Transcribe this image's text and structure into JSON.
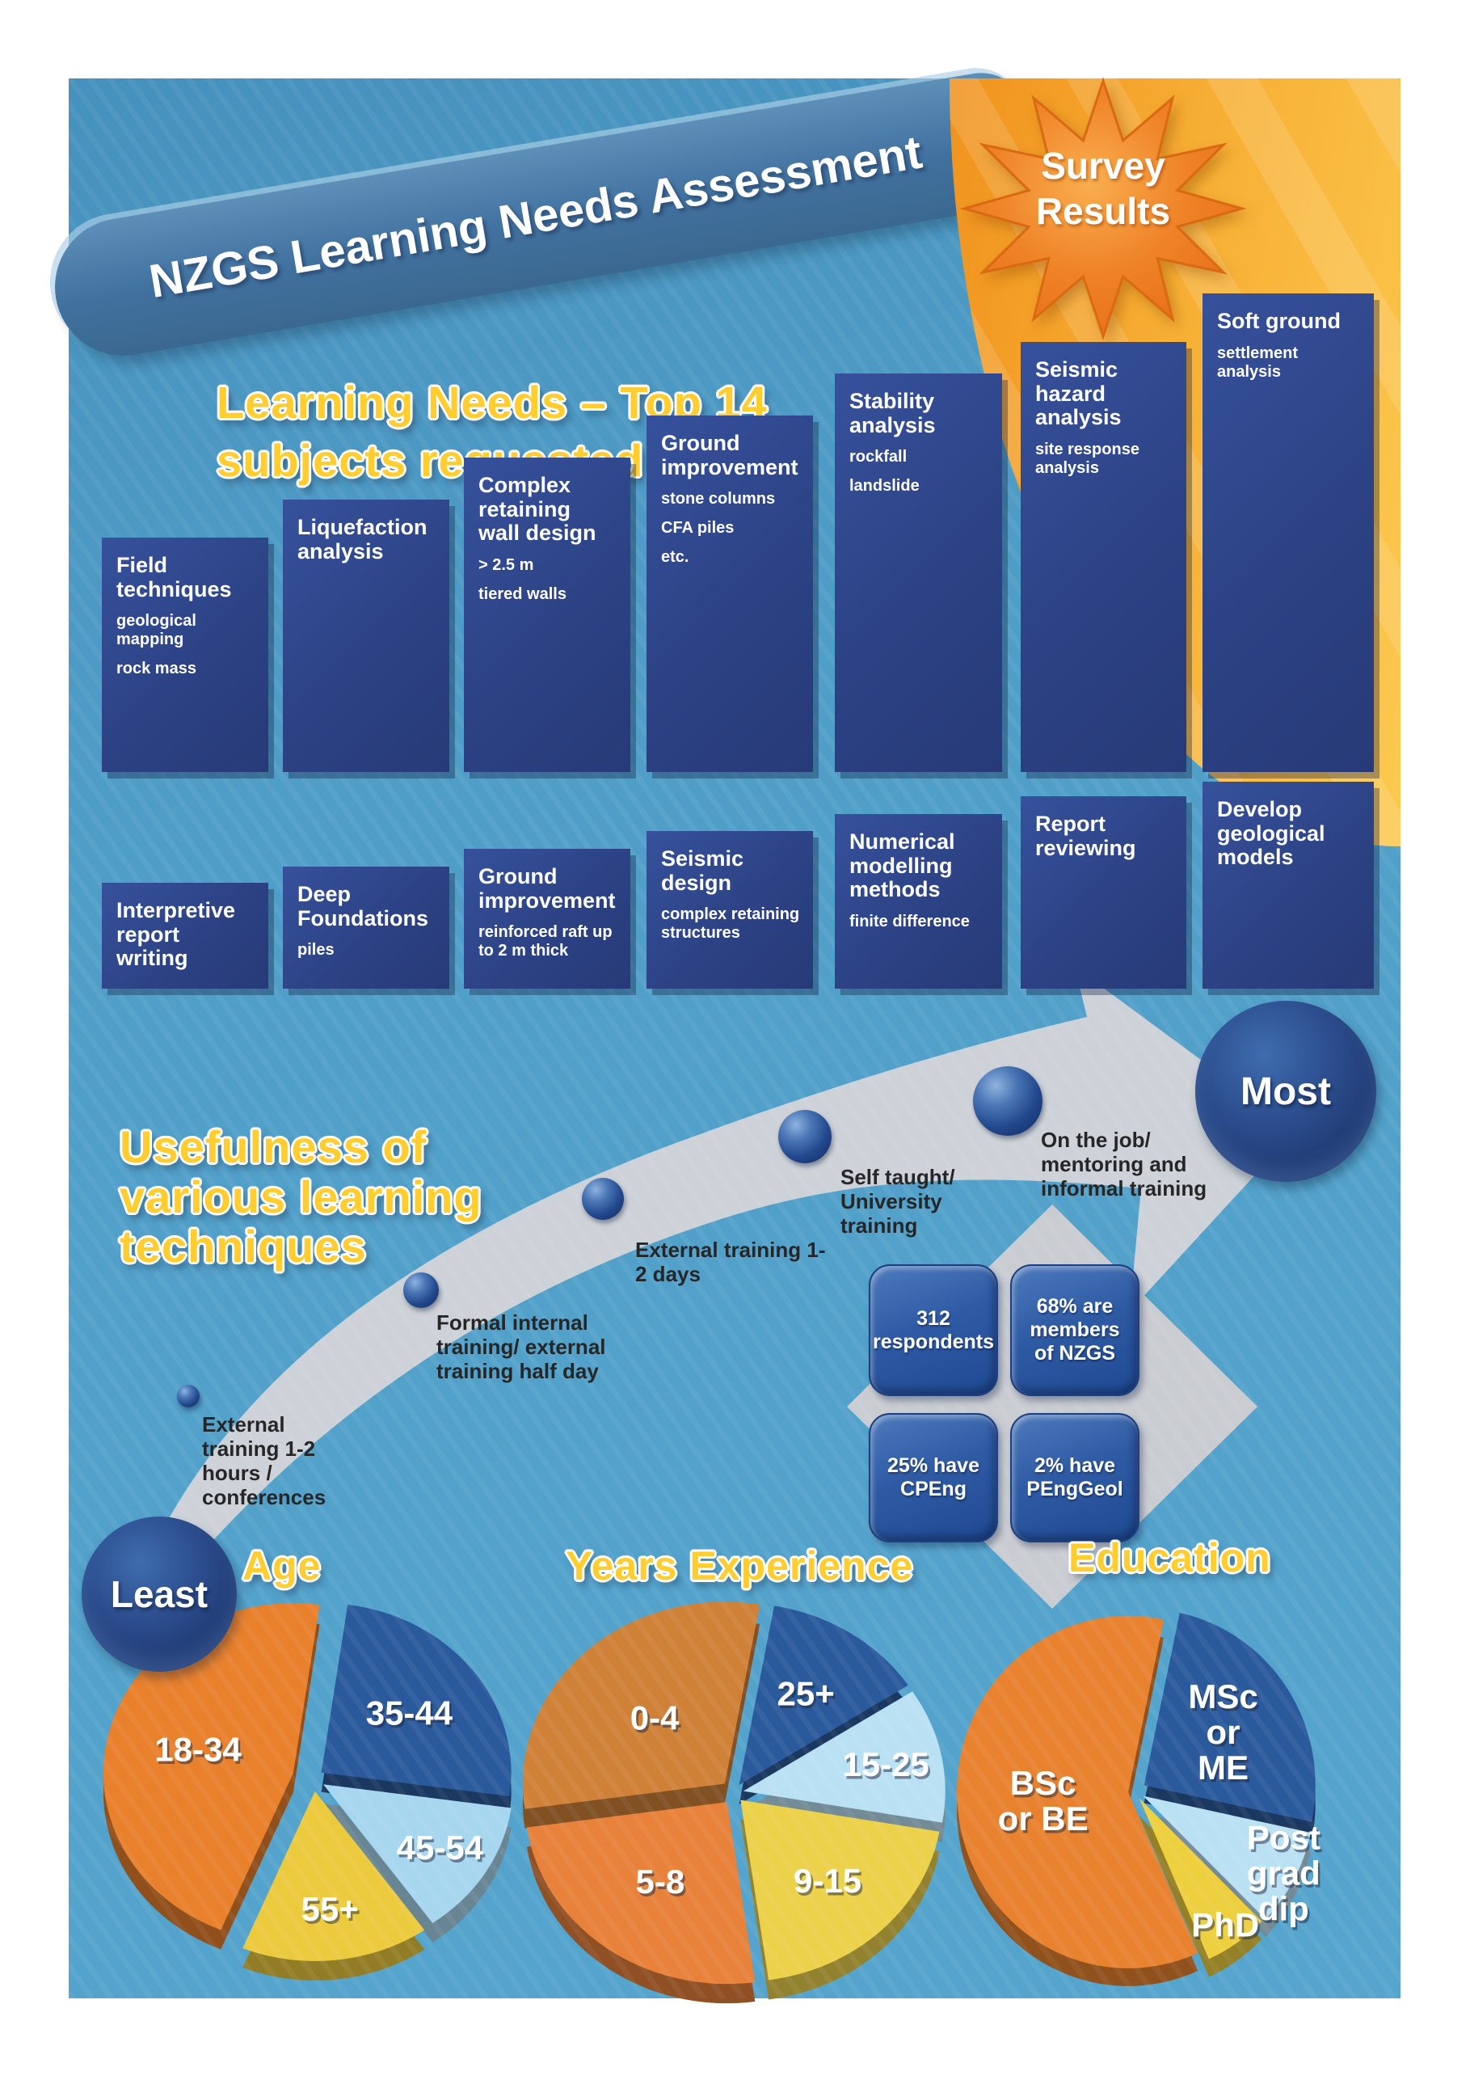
{
  "header": {
    "title": "NZGS Learning Needs Assessment",
    "badge_line1": "Survey",
    "badge_line2": "Results"
  },
  "learning_needs": {
    "heading_line1": "Learning Needs – Top 14",
    "heading_line2": "subjects requested",
    "row1": [
      {
        "title": "Field techniques",
        "details": [
          "geological mapping",
          "rock mass"
        ]
      },
      {
        "title": "Liquefaction analysis",
        "details": []
      },
      {
        "title": "Complex retaining wall design",
        "details": [
          "> 2.5 m",
          "tiered walls"
        ]
      },
      {
        "title": "Ground improvement",
        "details": [
          "stone columns",
          "CFA piles",
          "etc."
        ]
      },
      {
        "title": "Stability analysis",
        "details": [
          "rockfall",
          "landslide"
        ]
      },
      {
        "title": "Seismic hazard analysis",
        "details": [
          "site response analysis"
        ]
      },
      {
        "title": "Soft ground",
        "details": [
          "settlement analysis"
        ]
      }
    ],
    "row2": [
      {
        "title": "Interpretive report writing",
        "details": []
      },
      {
        "title": "Deep Foundations",
        "details": [
          "piles"
        ]
      },
      {
        "title": "Ground improvement",
        "details": [
          "reinforced raft up to 2 m thick"
        ]
      },
      {
        "title": "Seismic design",
        "details": [
          "complex retaining structures"
        ]
      },
      {
        "title": "Numerical modelling methods",
        "details": [
          "finite difference"
        ]
      },
      {
        "title": "Report reviewing",
        "details": []
      },
      {
        "title": "Develop geological models",
        "details": []
      }
    ]
  },
  "usefulness": {
    "heading_line1": "Usefulness of",
    "heading_line2": "various learning",
    "heading_line3": "techniques",
    "least_label": "Least",
    "most_label": "Most",
    "points": [
      {
        "label": "External training 1-2 hours / conferences"
      },
      {
        "label": "Formal internal training/ external training half day"
      },
      {
        "label": "External training 1-2 days"
      },
      {
        "label": "Self taught/ University training"
      },
      {
        "label": "On the job/ mentoring and informal training"
      }
    ]
  },
  "stats": {
    "tiles": [
      {
        "text": "312 respondents"
      },
      {
        "text": "68% are members of NZGS"
      },
      {
        "text": "25% have CPEng"
      },
      {
        "text": "2% have PEngGeol"
      }
    ]
  },
  "chart_data": [
    {
      "type": "bar",
      "title": "Learning Needs – Top 14 subjects requested",
      "note": "stepped boxes, no numeric axis shown; values are relative box heights (%)",
      "categories": [
        "Field techniques",
        "Liquefaction analysis",
        "Complex retaining wall design",
        "Ground improvement",
        "Stability analysis",
        "Seismic hazard analysis",
        "Soft ground",
        "Interpretive report writing",
        "Deep Foundations",
        "Ground improvement (rafts)",
        "Seismic design",
        "Numerical modelling methods",
        "Report reviewing",
        "Develop geological models"
      ],
      "values": [
        49,
        57,
        66,
        75,
        83,
        90,
        100,
        22,
        26,
        29,
        33,
        36,
        40,
        43
      ],
      "xlabel": "",
      "ylabel": ""
    },
    {
      "type": "pie",
      "title": "Age",
      "labels": [
        "35-44",
        "45-54",
        "55+",
        "18-34"
      ],
      "values": [
        25,
        13,
        16,
        46
      ],
      "colors": [
        "#2b5a9c",
        "#a7d6ef",
        "#ecca3e",
        "#e8802c"
      ],
      "start_angle": 8,
      "legend": "labels inside slices, 3D exploded pie"
    },
    {
      "type": "pie",
      "title": "Years Experience",
      "labels": [
        "25+",
        "15-25",
        "9-15",
        "5-8",
        "0-4"
      ],
      "values": [
        13,
        12,
        20,
        25,
        30
      ],
      "colors": [
        "#2b5a9c",
        "#b9e0f3",
        "#ecd14b",
        "#e8813a",
        "#d08138"
      ],
      "start_angle": 10,
      "legend": "labels inside slices, 3D exploded pie"
    },
    {
      "type": "pie",
      "title": "Education",
      "labels": [
        "MSc or ME",
        "Post grad dip",
        "PhD",
        "BSc or BE"
      ],
      "values": [
        25,
        9,
        6,
        60
      ],
      "colors": [
        "#2b5a9c",
        "#b9e0f3",
        "#eecf3e",
        "#e8822f"
      ],
      "start_angle": 12,
      "legend": "labels inside slices, 3D exploded pie"
    }
  ],
  "colors": {
    "page_bg": "#ffffff",
    "poster_bg": "#4f9ec8",
    "navy_box": "#2c4284",
    "banner_blue": "#41719f",
    "orange_corner_from": "#f0931e",
    "orange_corner_to": "#fcc94f",
    "star_orange": "#ef8227",
    "arrow_gray": "#d2d4d8",
    "tile_blue": "#2f5ba5",
    "heading_yellow": "#ffcd2e"
  }
}
